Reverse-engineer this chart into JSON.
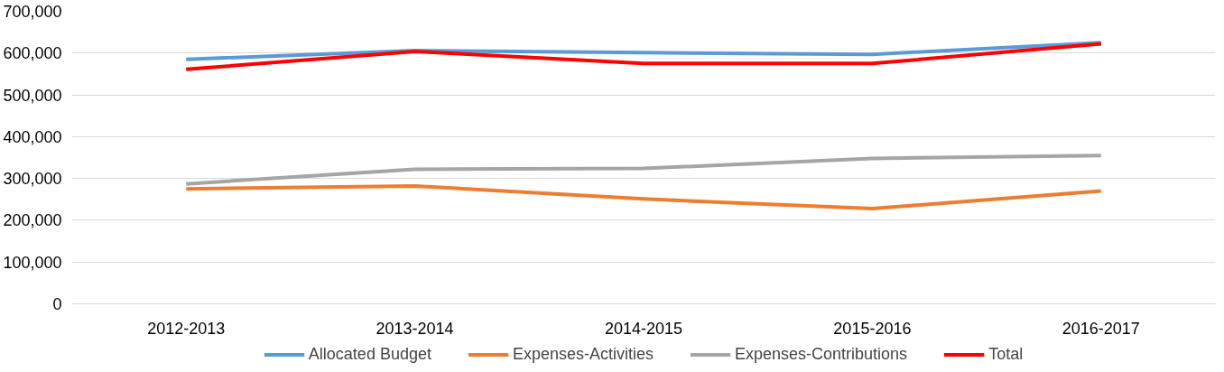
{
  "chart_data": {
    "type": "line",
    "categories": [
      "2012-2013",
      "2013-2014",
      "2014-2015",
      "2015-2016",
      "2016-2017"
    ],
    "series": [
      {
        "name": "Allocated Budget",
        "color": "#5b9bd5",
        "values": [
          585000,
          606000,
          601000,
          597000,
          625000
        ]
      },
      {
        "name": "Expenses-Activities",
        "color": "#ed7d31",
        "values": [
          275000,
          282000,
          251000,
          228000,
          270000
        ]
      },
      {
        "name": "Expenses-Contributions",
        "color": "#a5a5a5",
        "values": [
          287000,
          322000,
          324000,
          348000,
          355000
        ]
      },
      {
        "name": "Total",
        "color": "#ff0000",
        "values": [
          561000,
          604000,
          575000,
          575000,
          622000
        ]
      }
    ],
    "ylim": [
      0,
      700000
    ],
    "yticks": [
      {
        "value": 0,
        "label": "0"
      },
      {
        "value": 100000,
        "label": "100,000"
      },
      {
        "value": 200000,
        "label": "200,000"
      },
      {
        "value": 300000,
        "label": "300,000"
      },
      {
        "value": 400000,
        "label": "400,000"
      },
      {
        "value": 500000,
        "label": "500,000"
      },
      {
        "value": 600000,
        "label": "600,000"
      },
      {
        "value": 700000,
        "label": "700,000"
      }
    ],
    "grid": "y",
    "legend": "bottom",
    "marker": "none",
    "line_style": "solid"
  }
}
